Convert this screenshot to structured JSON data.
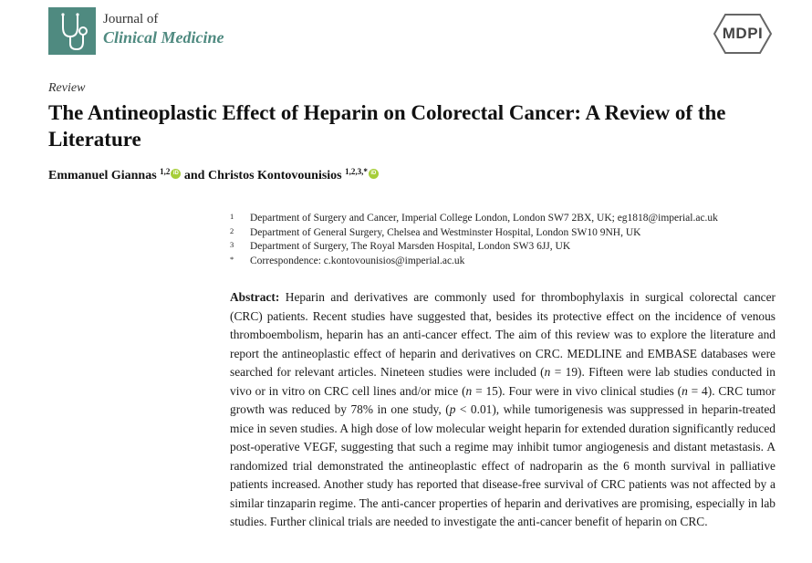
{
  "header": {
    "journal_prefix": "Journal of",
    "journal_name": "Clinical Medicine",
    "publisher": "MDPI",
    "logo_icon": "stethoscope-icon",
    "brand_color": "#4f8a80"
  },
  "article": {
    "type": "Review",
    "title": "The Antineoplastic Effect of Heparin on Colorectal Cancer: A Review of the Literature",
    "authors": [
      {
        "name": "Emmanuel Giannas",
        "sup": "1,2"
      },
      {
        "name": "Christos Kontovounisios",
        "sup": "1,2,3,*"
      }
    ],
    "and": "and"
  },
  "affiliations": [
    {
      "num": "1",
      "text": "Department of Surgery and Cancer, Imperial College London, London SW7 2BX, UK; eg1818@imperial.ac.uk"
    },
    {
      "num": "2",
      "text": "Department of General Surgery, Chelsea and Westminster Hospital, London SW10 9NH, UK"
    },
    {
      "num": "3",
      "text": "Department of Surgery, The Royal Marsden Hospital, London SW3 6JJ, UK"
    },
    {
      "num": "*",
      "text": "Correspondence: c.kontovounisios@imperial.ac.uk"
    }
  ],
  "abstract": {
    "label": "Abstract:",
    "p1": " Heparin and derivatives are commonly used for thrombophylaxis in surgical colorectal cancer (CRC) patients.  Recent studies have suggested that, besides its protective effect on the incidence of venous thromboembolism, heparin has an anti-cancer effect.  The aim of this review was to explore the literature and report the antineoplastic effect of heparin and derivatives on CRC. MEDLINE and EMBASE databases were searched for relevant articles. Nineteen studies were included (",
    "n1": "n",
    "p2": " = 19). Fifteen were lab studies conducted in vivo or in vitro on CRC cell lines and/or mice (",
    "n2": "n",
    "p3": " = 15). Four were in vivo clinical studies (",
    "n3": "n",
    "p4": " = 4). CRC tumor growth was reduced by 78% in one study, (",
    "pv": "p",
    "p5": " < 0.01), while tumorigenesis was suppressed in heparin-treated mice in seven studies. A high dose of low molecular weight heparin for extended duration significantly reduced post-operative VEGF, suggesting that such a regime may inhibit tumor angiogenesis and distant metastasis.  A randomized trial demonstrated the antineoplastic effect of nadroparin as the 6 month survival in palliative patients increased.  Another study has reported that disease-free survival of CRC patients was not affected by a similar tinzaparin regime. The anti-cancer properties of heparin and derivatives are promising, especially in lab studies. Further clinical trials are needed to investigate the anti-cancer benefit of heparin on CRC."
  }
}
